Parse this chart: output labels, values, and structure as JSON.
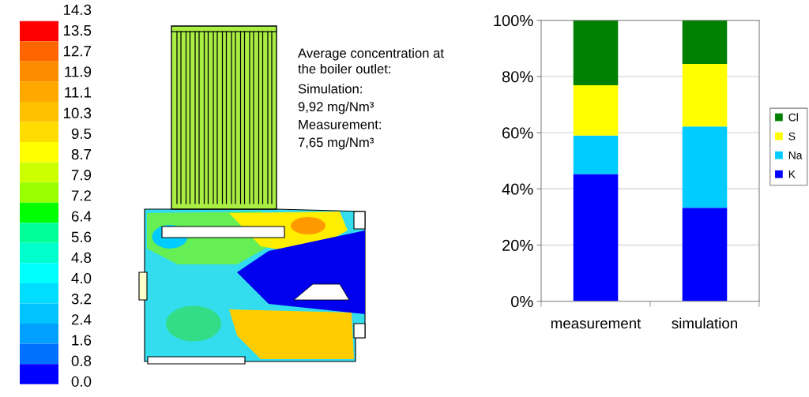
{
  "chart_data": [
    {
      "type": "other",
      "annotations": [
        "14.3",
        "13.5",
        "12.7",
        "11.9",
        "11.1",
        "10.3",
        "9.5",
        "8.7",
        "7.9",
        "7.2",
        "6.4",
        "5.6",
        "4.8",
        "4.0",
        "3.2",
        "2.4",
        "1.6",
        "0.8",
        "0.0"
      ]
    },
    {
      "type": "other",
      "annotations": [
        "Average concentration at\nthe boiler outlet:",
        "Simulation:",
        "9,92 mg/Nm³",
        "Measurement:",
        "7,65 mg/Nm³"
      ]
    },
    {
      "type": "bar",
      "stacked": true,
      "categories": [
        "measurement",
        "simulation"
      ],
      "series": [
        {
          "name": "K",
          "color": "#0000ff",
          "values": [
            45.3,
            33.3
          ]
        },
        {
          "name": "Na",
          "color": "#00ccff",
          "values": [
            13.7,
            28.9
          ]
        },
        {
          "name": "S",
          "color": "#ffff00",
          "values": [
            17.9,
            22.3
          ]
        },
        {
          "name": "Cl",
          "color": "#008000",
          "values": [
            23.1,
            15.5
          ]
        }
      ],
      "ylim": [
        0,
        100
      ],
      "yticks": [
        {
          "value": 0,
          "label": "0%"
        },
        {
          "value": 20,
          "label": "20%"
        },
        {
          "value": 40,
          "label": "40%"
        },
        {
          "value": 60,
          "label": "60%"
        },
        {
          "value": 80,
          "label": "80%"
        },
        {
          "value": 100,
          "label": "100%"
        }
      ],
      "grid": "y",
      "legend": "right"
    }
  ]
}
